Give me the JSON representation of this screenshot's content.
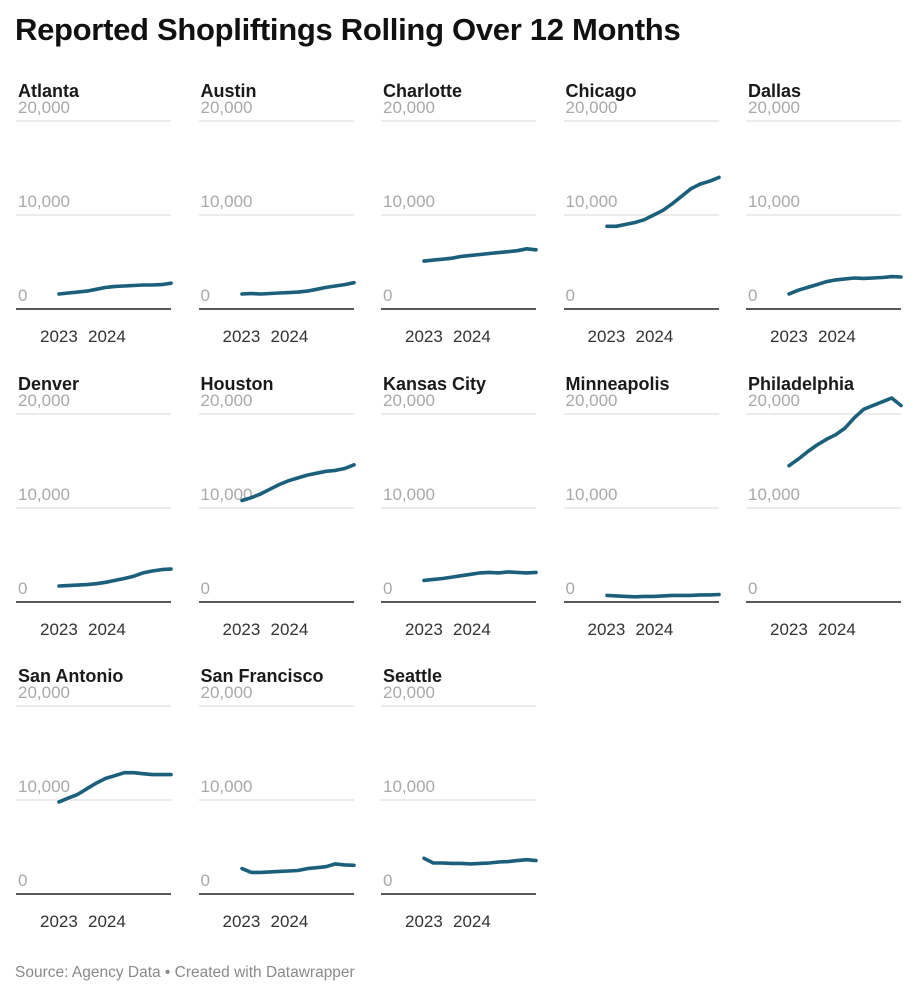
{
  "title": "Reported Shopliftings Rolling Over 12 Months",
  "footer": "Source: Agency Data • Created with Datawrapper",
  "colors": {
    "line": "#1c5f7b",
    "grid": "#d9d9d9",
    "baseline": "#222222",
    "ytick": "#a9a9a9"
  },
  "chart_data": {
    "type": "line",
    "layout": "small-multiples",
    "title": "Reported Shopliftings Rolling Over 12 Months",
    "y_ticks": [
      0,
      10000,
      20000
    ],
    "y_tick_labels": [
      "0",
      "10,000",
      "20,000"
    ],
    "ylim": [
      0,
      20000
    ],
    "x_tick_labels": [
      "2023",
      "2024"
    ],
    "x": [
      "2022-07",
      "2022-10",
      "2023-01",
      "2023-04",
      "2023-07",
      "2023-10",
      "2024-01",
      "2024-04",
      "2024-07",
      "2024-10",
      "2025-01",
      "2025-04",
      "2025-07"
    ],
    "series": [
      {
        "name": "Atlanta",
        "values": [
          1600,
          1700,
          1800,
          1900,
          2100,
          2300,
          2400,
          2450,
          2500,
          2550,
          2550,
          2600,
          2750
        ]
      },
      {
        "name": "Austin",
        "values": [
          1600,
          1650,
          1600,
          1650,
          1700,
          1750,
          1800,
          1900,
          2100,
          2300,
          2450,
          2600,
          2800
        ]
      },
      {
        "name": "Charlotte",
        "values": [
          5100,
          5200,
          5300,
          5400,
          5600,
          5700,
          5800,
          5900,
          6000,
          6100,
          6200,
          6400,
          6300
        ]
      },
      {
        "name": "Chicago",
        "values": [
          8800,
          8800,
          9000,
          9200,
          9500,
          10000,
          10500,
          11200,
          12000,
          12800,
          13300,
          13600,
          14000
        ]
      },
      {
        "name": "Dallas",
        "values": [
          1600,
          2000,
          2300,
          2600,
          2900,
          3100,
          3200,
          3300,
          3250,
          3300,
          3350,
          3450,
          3400
        ]
      },
      {
        "name": "Denver",
        "values": [
          1700,
          1750,
          1800,
          1850,
          1950,
          2100,
          2300,
          2500,
          2750,
          3100,
          3300,
          3450,
          3500
        ]
      },
      {
        "name": "Houston",
        "values": [
          10800,
          11100,
          11500,
          12000,
          12500,
          12900,
          13200,
          13500,
          13700,
          13900,
          14000,
          14200,
          14600
        ]
      },
      {
        "name": "Kansas City",
        "values": [
          2300,
          2400,
          2500,
          2650,
          2800,
          2950,
          3100,
          3150,
          3100,
          3200,
          3150,
          3100,
          3150
        ]
      },
      {
        "name": "Minneapolis",
        "values": [
          700,
          650,
          600,
          550,
          600,
          600,
          650,
          700,
          700,
          700,
          750,
          750,
          800
        ]
      },
      {
        "name": "Philadelphia",
        "values": [
          14500,
          15200,
          16000,
          16700,
          17300,
          17800,
          18500,
          19600,
          20500,
          20900,
          21300,
          21700,
          20900
        ]
      },
      {
        "name": "San Antonio",
        "values": [
          9800,
          10200,
          10600,
          11200,
          11800,
          12300,
          12600,
          12900,
          12900,
          12800,
          12700,
          12700,
          12700
        ]
      },
      {
        "name": "San Francisco",
        "values": [
          2700,
          2300,
          2300,
          2350,
          2400,
          2450,
          2500,
          2700,
          2800,
          2900,
          3200,
          3100,
          3050
        ]
      },
      {
        "name": "Seattle",
        "values": [
          3800,
          3300,
          3300,
          3250,
          3250,
          3200,
          3250,
          3300,
          3400,
          3450,
          3550,
          3650,
          3550
        ]
      }
    ]
  }
}
